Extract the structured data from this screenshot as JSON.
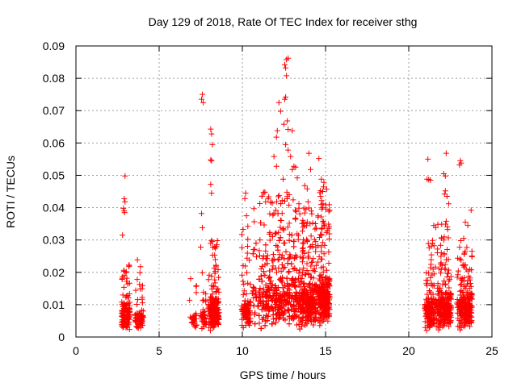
{
  "chart_data": {
    "type": "scatter",
    "title": "Day 129 of 2018, Rate Of TEC Index for receiver sthg",
    "xlabel": "GPS time / hours",
    "ylabel": "ROTI / TECUs",
    "xlim": [
      0,
      25
    ],
    "ylim": [
      0,
      0.09
    ],
    "x_ticks": [
      0,
      5,
      10,
      15,
      20,
      25
    ],
    "x_tick_labels": [
      "0",
      "5",
      "10",
      "15",
      "20",
      "25"
    ],
    "y_ticks": [
      0,
      0.01,
      0.02,
      0.03,
      0.04,
      0.05,
      0.06,
      0.07,
      0.08,
      0.09
    ],
    "y_tick_labels": [
      "0",
      "0.01",
      "0.02",
      "0.03",
      "0.04",
      "0.05",
      "0.06",
      "0.07",
      "0.08",
      "0.09"
    ],
    "grid": true,
    "marker": "+",
    "marker_color": "#ff0000",
    "clusters": [
      {
        "x_range": [
          2.75,
          3.25
        ],
        "dense_y": [
          0.002,
          0.012
        ],
        "sparse_y": [
          0.012,
          0.024
        ],
        "count": 130
      },
      {
        "x_range": [
          3.55,
          4.05
        ],
        "dense_y": [
          0.002,
          0.009
        ],
        "sparse_y": [
          0.009,
          0.024
        ],
        "count": 80
      },
      {
        "x_range": [
          6.8,
          7.25
        ],
        "dense_y": [
          0.002,
          0.008
        ],
        "sparse_y": [
          0.008,
          0.019
        ],
        "count": 30
      },
      {
        "x_range": [
          7.5,
          7.85
        ],
        "dense_y": [
          0.002,
          0.009
        ],
        "sparse_y": [
          0.009,
          0.02
        ],
        "count": 40
      },
      {
        "x_range": [
          7.95,
          8.6
        ],
        "dense_y": [
          0.001,
          0.013
        ],
        "sparse_y": [
          0.013,
          0.03
        ],
        "count": 180
      },
      {
        "x_range": [
          9.95,
          10.5
        ],
        "dense_y": [
          0.002,
          0.012
        ],
        "sparse_y": [
          0.012,
          0.037
        ],
        "count": 110
      },
      {
        "x_range": [
          10.6,
          13.2
        ],
        "dense_y": [
          0.001,
          0.02
        ],
        "sparse_y": [
          0.02,
          0.045
        ],
        "count": 900
      },
      {
        "x_range": [
          13.2,
          14.45
        ],
        "dense_y": [
          0.001,
          0.018
        ],
        "sparse_y": [
          0.018,
          0.04
        ],
        "count": 450
      },
      {
        "x_range": [
          14.5,
          15.25
        ],
        "dense_y": [
          0.002,
          0.02
        ],
        "sparse_y": [
          0.02,
          0.047
        ],
        "count": 280
      },
      {
        "x_range": [
          20.95,
          21.55
        ],
        "dense_y": [
          0.001,
          0.013
        ],
        "sparse_y": [
          0.013,
          0.03
        ],
        "count": 160
      },
      {
        "x_range": [
          21.6,
          22.55
        ],
        "dense_y": [
          0.001,
          0.015
        ],
        "sparse_y": [
          0.015,
          0.035
        ],
        "count": 260
      },
      {
        "x_range": [
          22.9,
          23.8
        ],
        "dense_y": [
          0.001,
          0.015
        ],
        "sparse_y": [
          0.015,
          0.03
        ],
        "count": 240
      }
    ],
    "outliers": [
      {
        "x": 2.95,
        "y": 0.0498
      },
      {
        "x": 2.9,
        "y": 0.0428
      },
      {
        "x": 2.95,
        "y": 0.0418
      },
      {
        "x": 2.85,
        "y": 0.0398
      },
      {
        "x": 2.92,
        "y": 0.0385
      },
      {
        "x": 2.9,
        "y": 0.039
      },
      {
        "x": 2.8,
        "y": 0.0315
      },
      {
        "x": 7.6,
        "y": 0.075
      },
      {
        "x": 7.55,
        "y": 0.0735
      },
      {
        "x": 7.65,
        "y": 0.0725
      },
      {
        "x": 7.55,
        "y": 0.0382
      },
      {
        "x": 7.6,
        "y": 0.0338
      },
      {
        "x": 7.5,
        "y": 0.0278
      },
      {
        "x": 8.1,
        "y": 0.0643
      },
      {
        "x": 8.15,
        "y": 0.0628
      },
      {
        "x": 8.2,
        "y": 0.0595
      },
      {
        "x": 8.1,
        "y": 0.0548
      },
      {
        "x": 8.15,
        "y": 0.0545
      },
      {
        "x": 8.1,
        "y": 0.0472
      },
      {
        "x": 8.15,
        "y": 0.0445
      },
      {
        "x": 8.2,
        "y": 0.0295
      },
      {
        "x": 8.5,
        "y": 0.0298
      },
      {
        "x": 10.2,
        "y": 0.0445
      },
      {
        "x": 10.15,
        "y": 0.0428
      },
      {
        "x": 10.25,
        "y": 0.0375
      },
      {
        "x": 11.4,
        "y": 0.0418
      },
      {
        "x": 11.55,
        "y": 0.0428
      },
      {
        "x": 11.9,
        "y": 0.0558
      },
      {
        "x": 12.1,
        "y": 0.0638
      },
      {
        "x": 12.05,
        "y": 0.0618
      },
      {
        "x": 12.2,
        "y": 0.0725
      },
      {
        "x": 12.05,
        "y": 0.0528
      },
      {
        "x": 12.3,
        "y": 0.0698
      },
      {
        "x": 12.5,
        "y": 0.0658
      },
      {
        "x": 12.55,
        "y": 0.0735
      },
      {
        "x": 12.6,
        "y": 0.0742
      },
      {
        "x": 12.65,
        "y": 0.0858
      },
      {
        "x": 12.55,
        "y": 0.0842
      },
      {
        "x": 12.75,
        "y": 0.0862
      },
      {
        "x": 12.6,
        "y": 0.0832
      },
      {
        "x": 12.65,
        "y": 0.0808
      },
      {
        "x": 12.7,
        "y": 0.0668
      },
      {
        "x": 12.75,
        "y": 0.0642
      },
      {
        "x": 12.6,
        "y": 0.0595
      },
      {
        "x": 12.75,
        "y": 0.0578
      },
      {
        "x": 13.0,
        "y": 0.0638
      },
      {
        "x": 12.9,
        "y": 0.0558
      },
      {
        "x": 13.1,
        "y": 0.0528
      },
      {
        "x": 13.0,
        "y": 0.0518
      },
      {
        "x": 13.2,
        "y": 0.0525
      },
      {
        "x": 13.3,
        "y": 0.0492
      },
      {
        "x": 12.45,
        "y": 0.0488
      },
      {
        "x": 12.2,
        "y": 0.0438
      },
      {
        "x": 12.8,
        "y": 0.0408
      },
      {
        "x": 13.4,
        "y": 0.0412
      },
      {
        "x": 13.75,
        "y": 0.0468
      },
      {
        "x": 13.9,
        "y": 0.0458
      },
      {
        "x": 13.95,
        "y": 0.0418
      },
      {
        "x": 14.0,
        "y": 0.0568
      },
      {
        "x": 14.1,
        "y": 0.0518
      },
      {
        "x": 14.6,
        "y": 0.0552
      },
      {
        "x": 14.75,
        "y": 0.0488
      },
      {
        "x": 14.9,
        "y": 0.0478
      },
      {
        "x": 14.7,
        "y": 0.0435
      },
      {
        "x": 14.85,
        "y": 0.0412
      },
      {
        "x": 14.55,
        "y": 0.0375
      },
      {
        "x": 21.15,
        "y": 0.055
      },
      {
        "x": 21.1,
        "y": 0.0488
      },
      {
        "x": 21.3,
        "y": 0.0485
      },
      {
        "x": 21.2,
        "y": 0.0487
      },
      {
        "x": 21.5,
        "y": 0.0345
      },
      {
        "x": 22.1,
        "y": 0.0505
      },
      {
        "x": 22.2,
        "y": 0.0498
      },
      {
        "x": 22.25,
        "y": 0.0568
      },
      {
        "x": 22.15,
        "y": 0.0442
      },
      {
        "x": 22.3,
        "y": 0.0435
      },
      {
        "x": 22.2,
        "y": 0.0452
      },
      {
        "x": 22.4,
        "y": 0.0412
      },
      {
        "x": 22.25,
        "y": 0.0358
      },
      {
        "x": 23.1,
        "y": 0.0545
      },
      {
        "x": 23.05,
        "y": 0.0532
      },
      {
        "x": 23.15,
        "y": 0.0538
      },
      {
        "x": 23.4,
        "y": 0.0355
      },
      {
        "x": 23.55,
        "y": 0.0345
      },
      {
        "x": 23.75,
        "y": 0.0392
      },
      {
        "x": 23.3,
        "y": 0.0305
      }
    ]
  }
}
